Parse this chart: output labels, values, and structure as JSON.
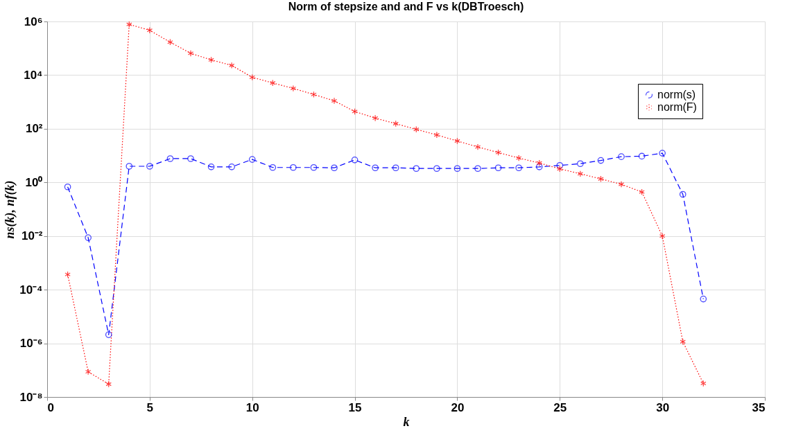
{
  "chart_data": {
    "type": "line",
    "title": "Norm of stepsize and and F vs k(DBTroesch)",
    "xlabel": "k",
    "ylabel": "ns(k), nf(k)",
    "x": [
      1,
      2,
      3,
      4,
      5,
      6,
      7,
      8,
      9,
      10,
      11,
      12,
      13,
      14,
      15,
      16,
      17,
      18,
      19,
      20,
      21,
      22,
      23,
      24,
      25,
      26,
      27,
      28,
      29,
      30,
      31,
      32
    ],
    "series": [
      {
        "name": "norm(s)",
        "color": "#0000ff",
        "marker": "circle",
        "line_style": "dashed",
        "values": [
          0.68,
          0.0087,
          2.1e-06,
          4.0,
          4.0,
          7.7,
          7.7,
          3.8,
          3.8,
          7.2,
          3.6,
          3.6,
          3.6,
          3.5,
          6.9,
          3.5,
          3.5,
          3.3,
          3.3,
          3.3,
          3.3,
          3.5,
          3.5,
          3.8,
          4.3,
          5.0,
          6.6,
          9.1,
          9.5,
          12.3,
          0.36,
          4.5e-05
        ]
      },
      {
        "name": "norm(F)",
        "color": "#ff0000",
        "marker": "cross",
        "line_style": "dotted",
        "values": [
          0.00037,
          8.7e-08,
          3e-08,
          780000.0,
          470000.0,
          170000.0,
          65000.0,
          37000.0,
          23000.0,
          8300,
          5100,
          3200,
          1900,
          1100,
          440,
          250,
          155,
          95,
          59,
          35,
          21,
          13,
          8.1,
          5.3,
          3.2,
          2.1,
          1.35,
          0.85,
          0.44,
          0.01,
          1.15e-06,
          3.2e-08
        ]
      }
    ],
    "log": "y",
    "xlim": [
      0,
      35
    ],
    "xticks": [
      0,
      5,
      10,
      15,
      20,
      25,
      30,
      35
    ],
    "ylim": [
      1e-08,
      1000000.0
    ],
    "yticks": [
      {
        "value": 1e-08,
        "label": "10⁻⁸"
      },
      {
        "value": 1e-06,
        "label": "10⁻⁶"
      },
      {
        "value": 0.0001,
        "label": "10⁻⁴"
      },
      {
        "value": 0.01,
        "label": "10⁻²"
      },
      {
        "value": 1,
        "label": "10⁰"
      },
      {
        "value": 100,
        "label": "10²"
      },
      {
        "value": 10000,
        "label": "10⁴"
      },
      {
        "value": 1000000,
        "label": "10⁶"
      }
    ],
    "grid": true,
    "legend": "top right"
  }
}
